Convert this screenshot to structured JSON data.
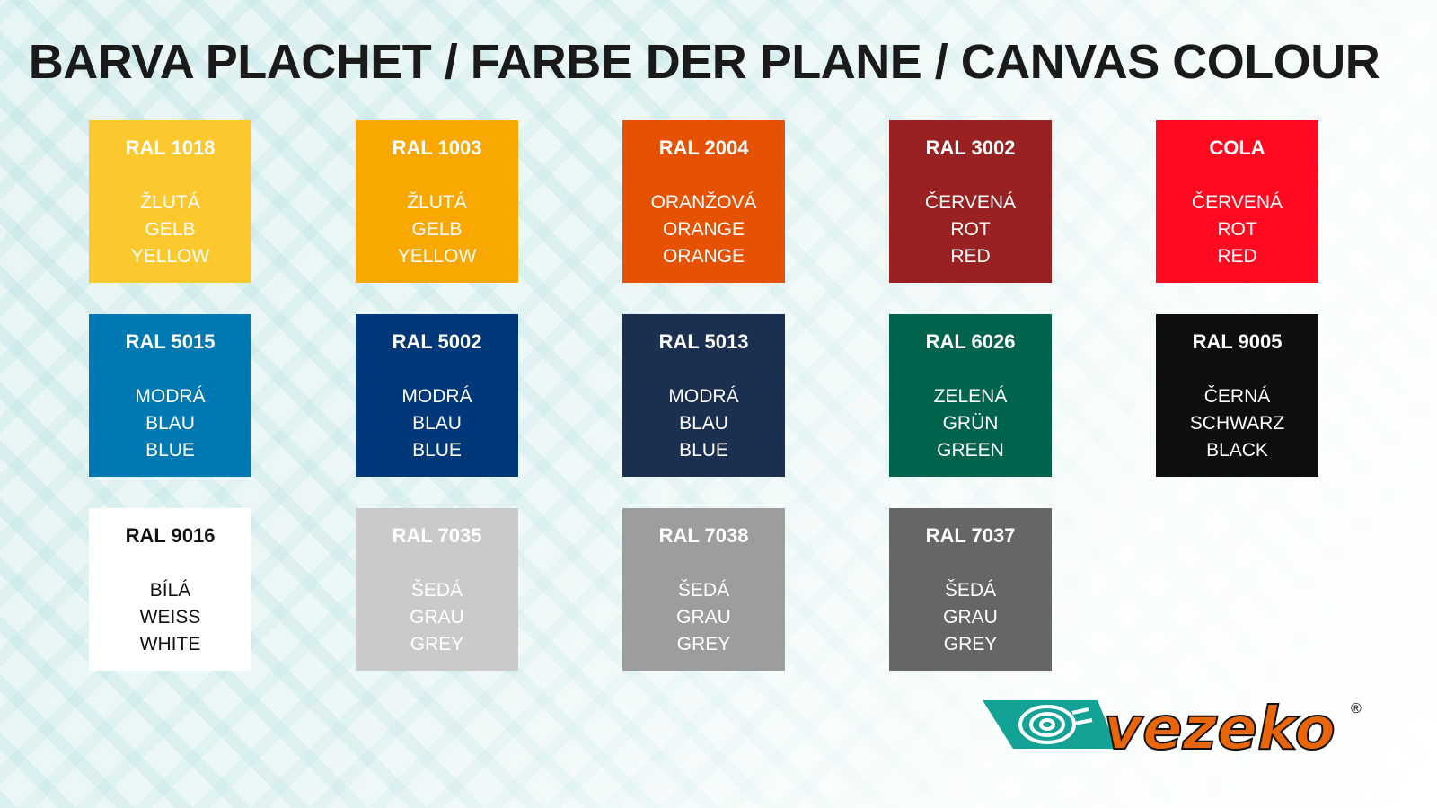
{
  "title": "BARVA PLACHET / FARBE DER PLANE / CANVAS COLOUR",
  "swatches": [
    {
      "code": "RAL 1018",
      "names": [
        "ŽLUTÁ",
        "GELB",
        "YELLOW"
      ],
      "color": "#FBC82E",
      "text": "#ffffff"
    },
    {
      "code": "RAL 1003",
      "names": [
        "ŽLUTÁ",
        "GELB",
        "YELLOW"
      ],
      "color": "#F8A800",
      "text": "#ffffff"
    },
    {
      "code": "RAL 2004",
      "names": [
        "ORANŽOVÁ",
        "ORANGE",
        "ORANGE"
      ],
      "color": "#E55204",
      "text": "#ffffff"
    },
    {
      "code": "RAL 3002",
      "names": [
        "ČERVENÁ",
        "ROT",
        "RED"
      ],
      "color": "#9A2121",
      "text": "#ffffff"
    },
    {
      "code": "COLA",
      "names": [
        "ČERVENÁ",
        "ROT",
        "RED"
      ],
      "color": "#FF0A20",
      "text": "#ffffff"
    },
    {
      "code": "RAL 5015",
      "names": [
        "MODRÁ",
        "BLAU",
        "BLUE"
      ],
      "color": "#0079B3",
      "text": "#ffffff"
    },
    {
      "code": "RAL 5002",
      "names": [
        "MODRÁ",
        "BLAU",
        "BLUE"
      ],
      "color": "#00387A",
      "text": "#ffffff"
    },
    {
      "code": "RAL 5013",
      "names": [
        "MODRÁ",
        "BLAU",
        "BLUE"
      ],
      "color": "#1B2F50",
      "text": "#ffffff"
    },
    {
      "code": "RAL 6026",
      "names": [
        "ZELENÁ",
        "GRÜN",
        "GREEN"
      ],
      "color": "#00634D",
      "text": "#ffffff"
    },
    {
      "code": "RAL 9005",
      "names": [
        "ČERNÁ",
        "SCHWARZ",
        "BLACK"
      ],
      "color": "#0E0E10",
      "text": "#ffffff"
    },
    {
      "code": "RAL 9016",
      "names": [
        "BÍLÁ",
        "WEISS",
        "WHITE"
      ],
      "color": "#FFFFFF",
      "text": "#111111"
    },
    {
      "code": "RAL 7035",
      "names": [
        "ŠEDÁ",
        "GRAU",
        "GREY"
      ],
      "color": "#CACACA",
      "text": "#ffffff"
    },
    {
      "code": "RAL 7038",
      "names": [
        "ŠEDÁ",
        "GRAU",
        "GREY"
      ],
      "color": "#9D9D9D",
      "text": "#ffffff"
    },
    {
      "code": "RAL 7037",
      "names": [
        "ŠEDÁ",
        "GRAU",
        "GREY"
      ],
      "color": "#666666",
      "text": "#ffffff"
    }
  ],
  "logo": {
    "text": "vezeko",
    "registered": "®",
    "teal": "#14A196",
    "orange": "#E8650A"
  }
}
